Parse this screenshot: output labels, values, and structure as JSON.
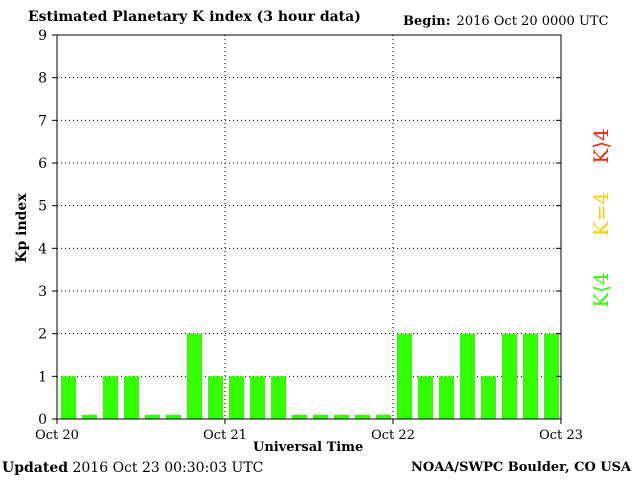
{
  "header": {
    "title": "Estimated Planetary K index (3 hour data)",
    "begin_label": "Begin:",
    "begin_value": "2016 Oct 20 0000 UTC"
  },
  "footer": {
    "updated_label": "Updated",
    "updated_value": "2016 Oct 23 00:30:03 UTC",
    "source": "NOAA/SWPC Boulder, CO USA"
  },
  "legend": {
    "items": [
      {
        "label": "K⟨4",
        "color": "#33ff00"
      },
      {
        "label": "K=4",
        "color": "#ffcc00"
      },
      {
        "label": "K⟩4",
        "color": "#ff2200"
      }
    ]
  },
  "chart_data": {
    "type": "bar",
    "title": "Estimated Planetary K index (3 hour data)",
    "xlabel": "Universal Time",
    "ylabel": "Kp index",
    "ylim": [
      0,
      9
    ],
    "yticks": [
      0,
      1,
      2,
      3,
      4,
      5,
      6,
      7,
      8,
      9
    ],
    "xticks": [
      "Oct 20",
      "Oct 21",
      "Oct 22",
      "Oct 23"
    ],
    "interval_hours": 3,
    "grid": "dotted at day boundaries and Kp 1-8",
    "bar_color": "#33ff00",
    "values": [
      1,
      0.1,
      1,
      1,
      0.1,
      0.1,
      2,
      1,
      1,
      1,
      1,
      0.1,
      0.1,
      0.1,
      0.1,
      0.1,
      2,
      1,
      1,
      2,
      1,
      2,
      2,
      2
    ]
  }
}
